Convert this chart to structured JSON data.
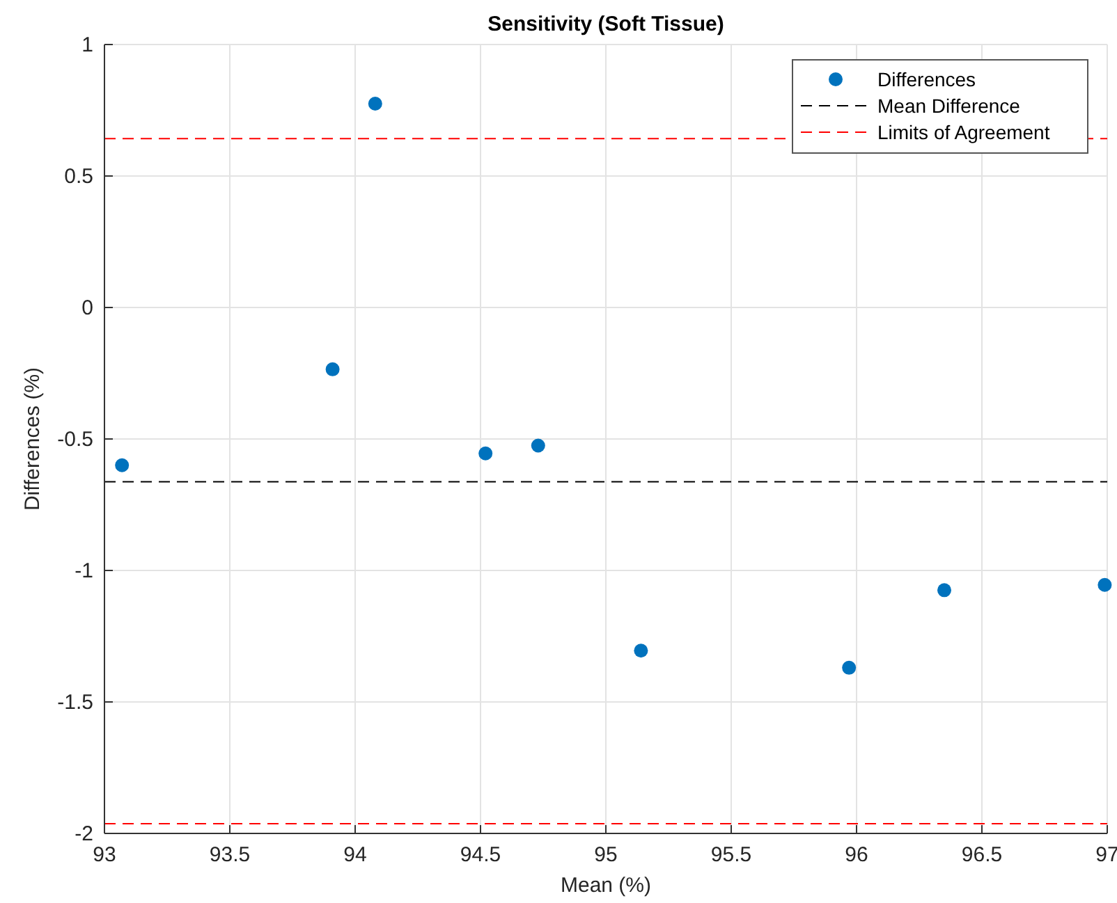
{
  "chart_data": {
    "type": "scatter",
    "title": "Sensitivity (Soft Tissue)",
    "xlabel": "Mean (%)",
    "ylabel": "Differences (%)",
    "x": [
      93.07,
      93.91,
      94.08,
      94.52,
      94.73,
      95.14,
      95.97,
      96.35,
      96.99
    ],
    "series": [
      {
        "name": "Differences",
        "color": "#0072bd",
        "values": [
          -0.6,
          -0.235,
          0.775,
          -0.555,
          -0.525,
          -1.305,
          -1.37,
          -1.075,
          -1.055
        ]
      }
    ],
    "xlim": [
      93,
      97
    ],
    "xticks": [
      93,
      93.5,
      94,
      94.5,
      95,
      95.5,
      96,
      96.5,
      97
    ],
    "ylim": [
      -2,
      1
    ],
    "yticks": [
      -2,
      -1.5,
      -1,
      -0.5,
      0,
      0.5,
      1
    ],
    "ref_lines": [
      {
        "axis": "y",
        "value": -0.663,
        "label": "Mean Difference",
        "color": "#000000",
        "line_style": "dashed"
      },
      {
        "axis": "y",
        "value": 0.642,
        "label": "Limits of Agreement",
        "color": "#ff0000",
        "line_style": "dashed"
      },
      {
        "axis": "y",
        "value": -1.963,
        "label": null,
        "color": "#ff0000",
        "line_style": "dashed"
      }
    ],
    "grid": true,
    "legend": "top right",
    "marker": "circle"
  }
}
